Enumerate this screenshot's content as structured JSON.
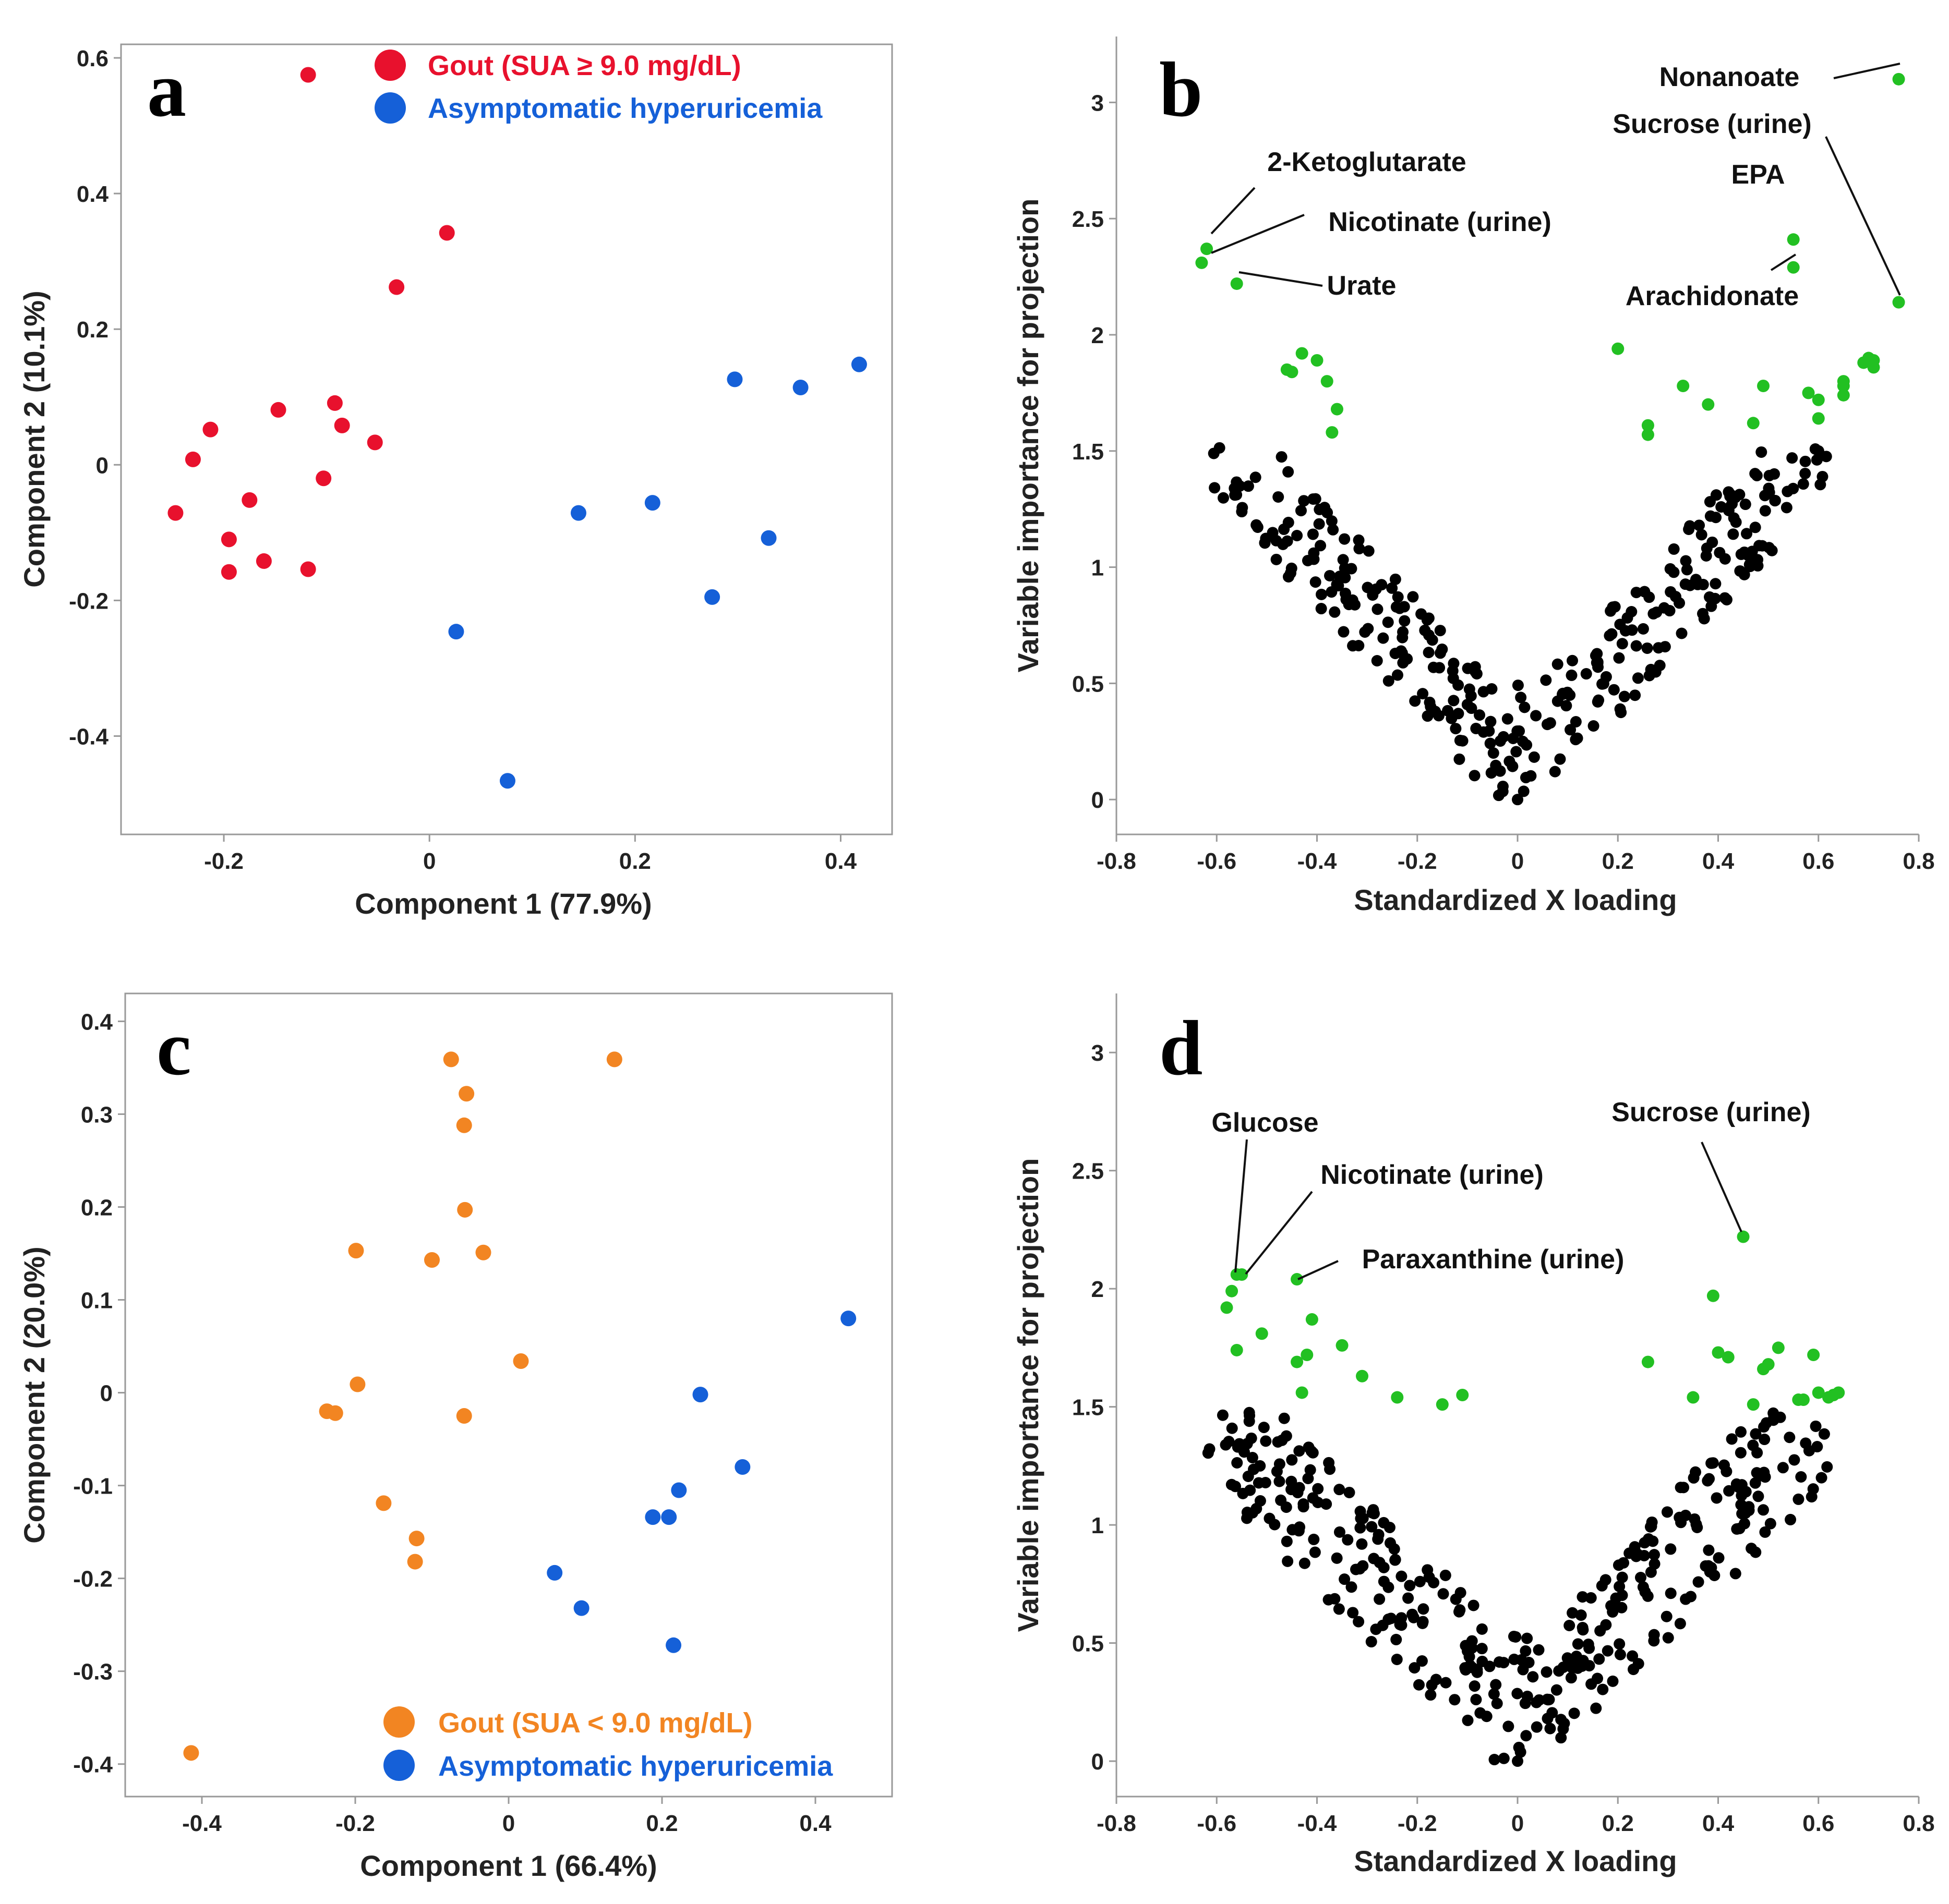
{
  "chart_data": [
    {
      "type": "scatter",
      "panel_label": "a",
      "xlabel": "Component 1 (77.9%)",
      "ylabel": "Component 2 (10.1%)",
      "xlim": [
        -0.3,
        0.45
      ],
      "ylim": [
        -0.545,
        0.62
      ],
      "xticks": [
        -0.2,
        0,
        0.2,
        0.4
      ],
      "xtick_labels": [
        "-0.2",
        "0",
        "0.2",
        "0.4"
      ],
      "yticks": [
        -0.4,
        -0.2,
        0,
        0.2,
        0.4,
        0.6
      ],
      "ytick_labels": [
        "-0.4",
        "-0.2",
        "0",
        "0.2",
        "0.4",
        "0.6"
      ],
      "legend": [
        {
          "label": "Gout (SUA ≥ 9.0 mg/dL)",
          "color": "#e8112d"
        },
        {
          "label": "Asymptomatic hyperuricemia",
          "color": "#1560d8"
        }
      ],
      "series": [
        {
          "name": "Gout (SUA ≥ 9.0 mg/dL)",
          "color": "#e8112d",
          "x": [
            -0.118,
            0.017,
            -0.032,
            -0.147,
            -0.092,
            -0.085,
            -0.213,
            -0.053,
            -0.23,
            -0.103,
            -0.247,
            -0.175,
            -0.195,
            -0.161,
            -0.195,
            -0.118
          ],
          "y": [
            0.575,
            0.342,
            0.262,
            0.081,
            0.091,
            0.058,
            0.052,
            0.033,
            0.008,
            -0.02,
            -0.071,
            -0.052,
            -0.11,
            -0.142,
            -0.158,
            -0.154
          ]
        },
        {
          "name": "Asymptomatic hyperuricemia",
          "color": "#1560d8",
          "x": [
            0.297,
            0.361,
            0.418,
            0.145,
            0.217,
            0.33,
            0.275,
            0.026,
            0.076
          ],
          "y": [
            0.126,
            0.114,
            0.148,
            -0.071,
            -0.056,
            -0.108,
            -0.195,
            -0.246,
            -0.466
          ]
        }
      ]
    },
    {
      "type": "scatter",
      "panel_label": "b",
      "xlabel": "Standardized X loading",
      "ylabel": "Variable importance for projection",
      "xlim": [
        -0.8,
        0.8
      ],
      "ylim": [
        -0.15,
        3.25
      ],
      "xticks": [
        -0.8,
        -0.6,
        -0.4,
        -0.2,
        0,
        0.2,
        0.4,
        0.6,
        0.8
      ],
      "xtick_labels": [
        "-0.8",
        "-0.6",
        "-0.4",
        "-0.2",
        "0",
        "0.2",
        "0.4",
        "0.6",
        "0.8"
      ],
      "yticks": [
        0,
        0.5,
        1,
        1.5,
        2,
        2.5,
        3
      ],
      "ytick_labels": [
        "0",
        "0.5",
        "1",
        "1.5",
        "2",
        "2.5",
        "3"
      ],
      "highlight_color": "#22c022",
      "base_color": "#000000",
      "highlighted": {
        "x": [
          0.76,
          0.55,
          0.55,
          0.76,
          -0.62,
          -0.63,
          -0.56,
          -0.46,
          -0.45,
          -0.43,
          -0.4,
          -0.38,
          -0.36,
          -0.37,
          0.2,
          0.26,
          0.26,
          0.33,
          0.38,
          0.47,
          0.49,
          0.58,
          0.6,
          0.6,
          0.65,
          0.65,
          0.65,
          0.69,
          0.7,
          0.71,
          0.71
        ],
        "y": [
          3.1,
          2.41,
          2.29,
          2.14,
          2.37,
          2.31,
          2.22,
          1.85,
          1.84,
          1.92,
          1.89,
          1.8,
          1.68,
          1.58,
          1.94,
          1.61,
          1.57,
          1.78,
          1.7,
          1.62,
          1.78,
          1.75,
          1.72,
          1.64,
          1.8,
          1.78,
          1.74,
          1.88,
          1.9,
          1.86,
          1.89
        ]
      },
      "scatter_params": {
        "seed": 17,
        "count": 330,
        "ymax": 1.52,
        "slope": 2.3,
        "spread": 0.5
      },
      "annotations": [
        {
          "text": "Nonanoate",
          "x": 0.76,
          "y": 3.1
        },
        {
          "text": "Sucrose (urine)",
          "x": 0.76,
          "y": 2.14
        },
        {
          "text": "EPA",
          "x": 0.55,
          "y": 2.41
        },
        {
          "text": "Arachidonate",
          "x": 0.55,
          "y": 2.29
        },
        {
          "text": "2-Ketoglutarate",
          "x": -0.62,
          "y": 2.37
        },
        {
          "text": "Nicotinate (urine)",
          "x": -0.63,
          "y": 2.31
        },
        {
          "text": "Urate",
          "x": -0.56,
          "y": 2.22
        }
      ]
    },
    {
      "type": "scatter",
      "panel_label": "c",
      "xlabel": "Component 1 (66.4%)",
      "ylabel": "Component 2 (20.0%)",
      "xlim": [
        -0.5,
        0.5
      ],
      "ylim": [
        -0.435,
        0.43
      ],
      "xticks": [
        -0.4,
        -0.2,
        0,
        0.2,
        0.4
      ],
      "xtick_labels": [
        "-0.4",
        "-0.2",
        "0",
        "0.2",
        "0.4"
      ],
      "yticks": [
        -0.4,
        -0.3,
        -0.2,
        -0.1,
        0,
        0.1,
        0.2,
        0.3,
        0.4
      ],
      "ytick_labels": [
        "-0.4",
        "-0.3",
        "-0.2",
        "-0.1",
        "0",
        "0.1",
        "0.2",
        "0.3",
        "0.4"
      ],
      "legend": [
        {
          "label": "Gout (SUA < 9.0 mg/dL)",
          "color": "#f28522"
        },
        {
          "label": "Asymptomatic hyperuricemia",
          "color": "#1560d8"
        }
      ],
      "series": [
        {
          "name": "Gout (SUA < 9.0 mg/dL)",
          "color": "#f28522",
          "x": [
            -0.075,
            0.138,
            -0.055,
            -0.058,
            -0.057,
            -0.199,
            -0.1,
            -0.033,
            0.016,
            -0.197,
            -0.237,
            -0.226,
            -0.058,
            -0.163,
            -0.12,
            -0.122,
            -0.414
          ],
          "y": [
            0.359,
            0.359,
            0.322,
            0.288,
            0.197,
            0.153,
            0.143,
            0.151,
            0.034,
            0.009,
            -0.02,
            -0.022,
            -0.025,
            -0.119,
            -0.157,
            -0.182,
            -0.388
          ]
        },
        {
          "name": "Asymptomatic hyperuricemia",
          "color": "#1560d8",
          "x": [
            0.443,
            0.25,
            0.305,
            0.222,
            0.188,
            0.209,
            0.06,
            0.095,
            0.215
          ],
          "y": [
            0.08,
            -0.002,
            -0.08,
            -0.105,
            -0.134,
            -0.134,
            -0.194,
            -0.232,
            -0.272
          ]
        }
      ]
    },
    {
      "type": "scatter",
      "panel_label": "d",
      "xlabel": "Standardized X loading",
      "ylabel": "Variable importance for projection",
      "xlim": [
        -0.8,
        0.8
      ],
      "ylim": [
        -0.15,
        3.25
      ],
      "xticks": [
        -0.8,
        -0.6,
        -0.4,
        -0.2,
        0,
        0.2,
        0.4,
        0.6,
        0.8
      ],
      "xtick_labels": [
        "-0.8",
        "-0.6",
        "-0.4",
        "-0.2",
        "0",
        "0.2",
        "0.4",
        "0.6",
        "0.8"
      ],
      "yticks": [
        0,
        0.5,
        1,
        1.5,
        2,
        2.5,
        3
      ],
      "ytick_labels": [
        "0",
        "0.5",
        "1",
        "1.5",
        "2",
        "2.5",
        "3"
      ],
      "highlight_color": "#22c022",
      "base_color": "#000000",
      "highlighted": {
        "x": [
          0.45,
          -0.56,
          -0.55,
          -0.57,
          -0.44,
          -0.58,
          -0.51,
          -0.56,
          -0.41,
          -0.42,
          -0.44,
          -0.43,
          -0.35,
          -0.31,
          -0.24,
          -0.15,
          -0.11,
          0.26,
          0.35,
          0.39,
          0.4,
          0.42,
          0.47,
          0.49,
          0.5,
          0.52,
          0.56,
          0.57,
          0.59,
          0.6,
          0.62,
          0.63,
          0.64
        ],
        "y": [
          2.22,
          2.06,
          2.06,
          1.99,
          2.04,
          1.92,
          1.81,
          1.74,
          1.87,
          1.72,
          1.69,
          1.56,
          1.76,
          1.63,
          1.54,
          1.51,
          1.55,
          1.69,
          1.54,
          1.97,
          1.73,
          1.71,
          1.51,
          1.66,
          1.68,
          1.75,
          1.53,
          1.53,
          1.72,
          1.56,
          1.54,
          1.55,
          1.56
        ]
      },
      "scatter_params": {
        "seed": 91,
        "count": 360,
        "ymax": 1.48,
        "slope": 2.05,
        "spread": 0.6
      },
      "annotations": [
        {
          "text": "Glucose",
          "x": -0.56,
          "y": 2.06
        },
        {
          "text": "Nicotinate (urine)",
          "x": -0.55,
          "y": 2.06
        },
        {
          "text": "Paraxanthine (urine)",
          "x": -0.44,
          "y": 2.04
        },
        {
          "text": "Sucrose (urine)",
          "x": 0.45,
          "y": 2.22
        }
      ]
    }
  ]
}
